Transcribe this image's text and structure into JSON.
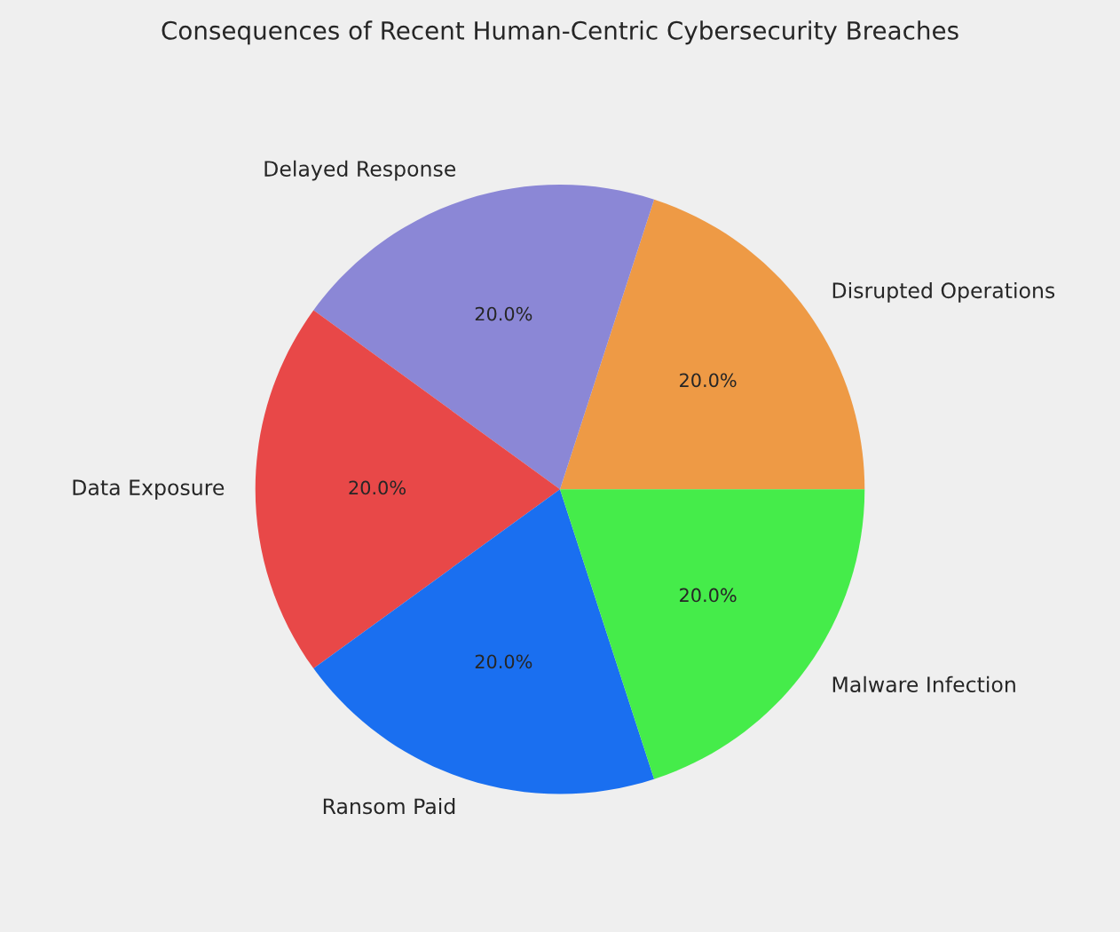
{
  "chart_data": {
    "type": "pie",
    "title": "Consequences of Recent Human-Centric Cybersecurity Breaches",
    "categories": [
      "Disrupted Operations",
      "Delayed Response",
      "Data Exposure",
      "Ransom Paid",
      "Malware Infection"
    ],
    "values": [
      20,
      20,
      20,
      20,
      20
    ],
    "value_labels": [
      "20.0%",
      "20.0%",
      "20.0%",
      "20.0%",
      "20.0%"
    ],
    "colors": [
      "#ee9a45",
      "#8b87d6",
      "#e84848",
      "#1a6ff0",
      "#45ec4a"
    ]
  }
}
